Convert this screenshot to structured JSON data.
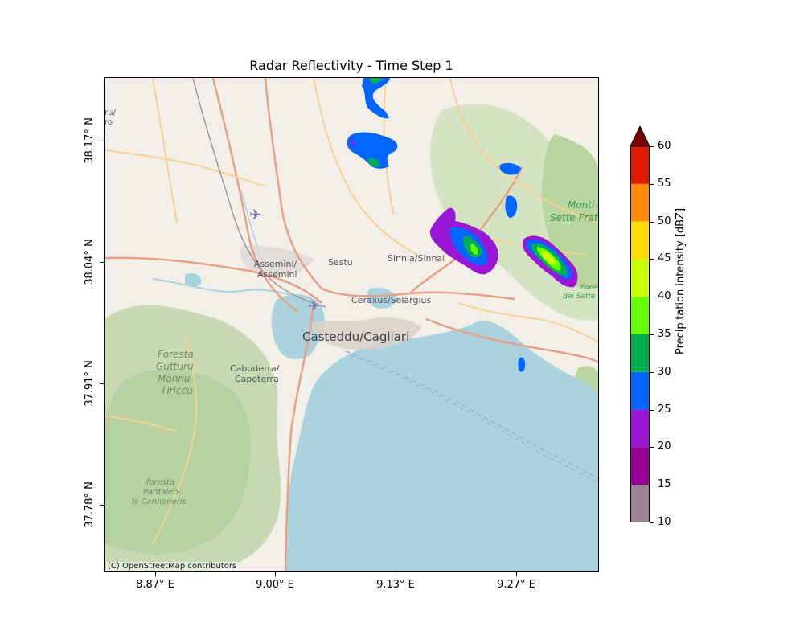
{
  "figure": {
    "title": "Radar Reflectivity - Time Step 1",
    "attribution": "(C) OpenStreetMap contributors"
  },
  "axes": {
    "x_ticks": [
      "8.87° E",
      "9.00° E",
      "9.13° E",
      "9.27° E"
    ],
    "y_ticks": [
      "38.17° N",
      "38.04° N",
      "37.91° N",
      "37.78° N"
    ]
  },
  "colorbar": {
    "label": "Precipitation intensity [dBZ]",
    "ticks": [
      "10",
      "15",
      "20",
      "25",
      "30",
      "35",
      "40",
      "45",
      "50",
      "55",
      "60"
    ],
    "bins": [
      {
        "from": 10,
        "to": 15,
        "color": "#9a8196"
      },
      {
        "from": 15,
        "to": 20,
        "color": "#990099"
      },
      {
        "from": 20,
        "to": 25,
        "color": "#9a17d5"
      },
      {
        "from": 25,
        "to": 30,
        "color": "#0066ff"
      },
      {
        "from": 30,
        "to": 35,
        "color": "#00b050"
      },
      {
        "from": 35,
        "to": 40,
        "color": "#66ff00"
      },
      {
        "from": 40,
        "to": 45,
        "color": "#ccff00"
      },
      {
        "from": 45,
        "to": 50,
        "color": "#ffdd00"
      },
      {
        "from": 50,
        "to": 55,
        "color": "#ff8c00"
      },
      {
        "from": 55,
        "to": 60,
        "color": "#e01a00"
      }
    ],
    "extend_color": "#7a0000"
  },
  "map_labels": {
    "cagliari": "Casteddu/Cagliari",
    "assemini": "Assemini/\nAssemini",
    "sestu": "Sestu",
    "sinnia": "Sinnia/Sinnai",
    "ceraxus": "Ceraxus/Selargius",
    "cabuderra": "Cabuderra/\nCapoterra",
    "foresta_gutturu": "Foresta\nGutturu\nMannu-\nTiriccu",
    "foresta_pantaleo": "foresta\nPantaleo-\nIs Cannoneris",
    "monti_sette": "Monti de\nSette Frate",
    "foresta_sette": "Foresta\ndei Sette",
    "edge_nw": "ru/\nro"
  },
  "palette": {
    "land": "#f2efe9",
    "sea": "#aad3df",
    "forest": "#add19e",
    "road_major": "#e89f84",
    "road_minor": "#f6d290",
    "water": "#aad3df"
  }
}
